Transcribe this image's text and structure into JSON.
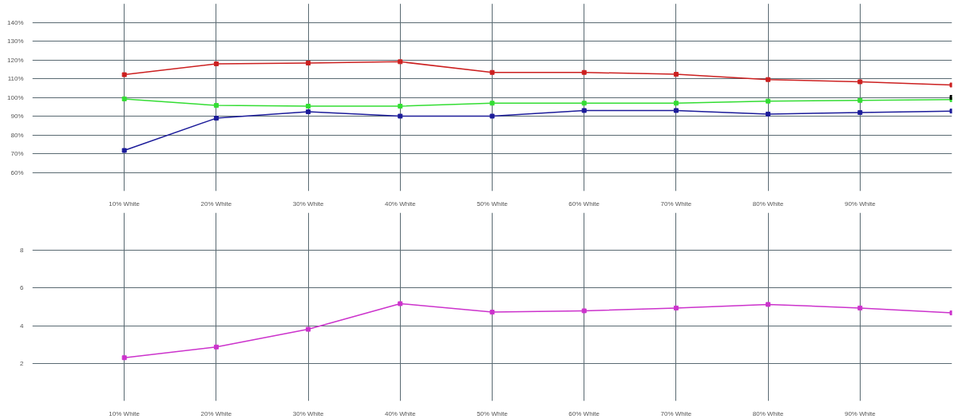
{
  "chart_data": [
    {
      "type": "line",
      "categories": [
        "10% White",
        "20% White",
        "30% White",
        "40% White",
        "50% White",
        "60% White",
        "70% White",
        "80% White",
        "90% White",
        null
      ],
      "ylim": [
        50,
        150
      ],
      "yticks": [
        {
          "value": 60,
          "label": "60%"
        },
        {
          "value": 70,
          "label": "70%"
        },
        {
          "value": 80,
          "label": "80%"
        },
        {
          "value": 90,
          "label": "90%"
        },
        {
          "value": 100,
          "label": "100%"
        },
        {
          "value": 110,
          "label": "110%"
        },
        {
          "value": 120,
          "label": "120%"
        },
        {
          "value": 130,
          "label": "130%"
        },
        {
          "value": 140,
          "label": "140%"
        }
      ],
      "grid": true,
      "marker": "square",
      "line_style": "solid",
      "series": [
        {
          "color": "#cc2020",
          "values": [
            112.1,
            117.9,
            118.3,
            119,
            113.3,
            113.3,
            112.3,
            109.5,
            108.3,
            106.6
          ]
        },
        {
          "color": "#33dd33",
          "values": [
            99.2,
            95.7,
            95.3,
            95.3,
            96.9,
            96.9,
            96.9,
            98,
            98.4,
            98.8
          ]
        },
        {
          "color": "#1c1c9a",
          "values": [
            71.7,
            88.9,
            92.3,
            90,
            90,
            93,
            93,
            91.1,
            91.9,
            92.7
          ]
        },
        {
          "type": "scatter",
          "color": "#000000",
          "values": [
            null,
            null,
            null,
            null,
            null,
            null,
            null,
            null,
            null,
            100
          ]
        }
      ]
    },
    {
      "type": "line",
      "categories": [
        "10% White",
        "20% White",
        "30% White",
        "40% White",
        "50% White",
        "60% White",
        "70% White",
        "80% White",
        "90% White",
        null
      ],
      "ylim": [
        0,
        10
      ],
      "yticks": [
        2,
        4,
        6,
        8
      ],
      "grid": true,
      "marker": "square",
      "line_style": "solid",
      "series": [
        {
          "color": "#cc33cc",
          "values": [
            2.3,
            2.87,
            3.81,
            5.17,
            4.72,
            4.79,
            4.94,
            5.13,
            4.94,
            4.68
          ]
        }
      ]
    }
  ]
}
